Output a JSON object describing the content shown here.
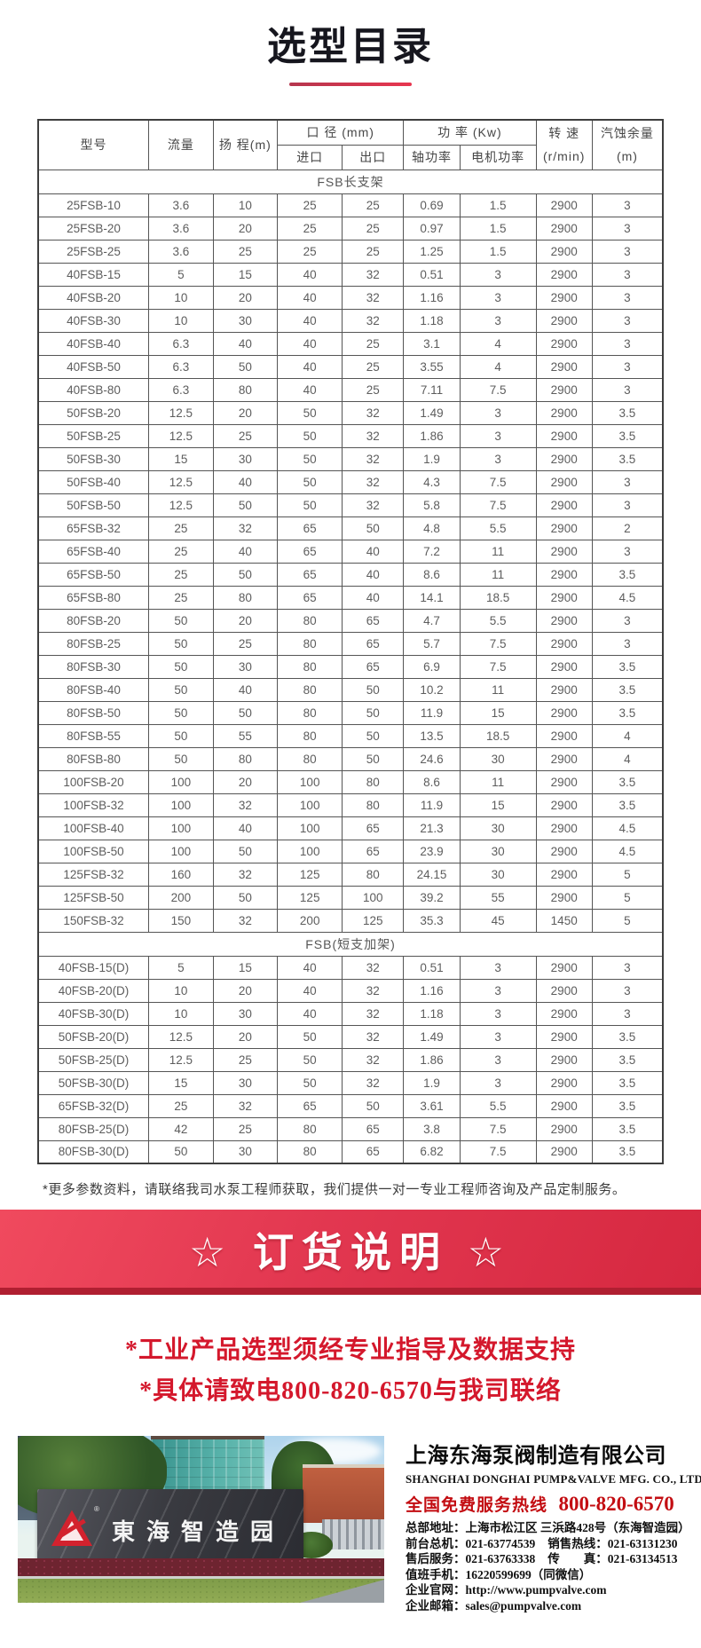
{
  "page_title": "选型目录",
  "colors": {
    "title_underline": "#e8364f",
    "banner_red_light": "#f04a5e",
    "banner_red_dark": "#d62840",
    "banner_bottom_strip": "#b01f31",
    "note_red": "#d4182c",
    "hotline_red": "#c30d12",
    "sign_logo_red": "#d3222e"
  },
  "table": {
    "header": {
      "col_model": "型号",
      "col_flow": "流量",
      "col_head": "扬 程(m)",
      "col_diameter": "口 径 (mm)",
      "col_inlet": "进口",
      "col_outlet": "出口",
      "col_power": "功 率 (Kw)",
      "col_shaft_power": "轴功率",
      "col_motor_power": "电机功率",
      "col_speed": "转 速",
      "col_speed_unit": "(r/min)",
      "col_npsh": "汽蚀余量",
      "col_npsh_unit": "(m)"
    },
    "sections": [
      {
        "title": "FSB长支架",
        "rows": [
          [
            "25FSB-10",
            "3.6",
            "10",
            "25",
            "25",
            "0.69",
            "1.5",
            "2900",
            "3"
          ],
          [
            "25FSB-20",
            "3.6",
            "20",
            "25",
            "25",
            "0.97",
            "1.5",
            "2900",
            "3"
          ],
          [
            "25FSB-25",
            "3.6",
            "25",
            "25",
            "25",
            "1.25",
            "1.5",
            "2900",
            "3"
          ],
          [
            "40FSB-15",
            "5",
            "15",
            "40",
            "32",
            "0.51",
            "3",
            "2900",
            "3"
          ],
          [
            "40FSB-20",
            "10",
            "20",
            "40",
            "32",
            "1.16",
            "3",
            "2900",
            "3"
          ],
          [
            "40FSB-30",
            "10",
            "30",
            "40",
            "32",
            "1.18",
            "3",
            "2900",
            "3"
          ],
          [
            "40FSB-40",
            "6.3",
            "40",
            "40",
            "25",
            "3.1",
            "4",
            "2900",
            "3"
          ],
          [
            "40FSB-50",
            "6.3",
            "50",
            "40",
            "25",
            "3.55",
            "4",
            "2900",
            "3"
          ],
          [
            "40FSB-80",
            "6.3",
            "80",
            "40",
            "25",
            "7.11",
            "7.5",
            "2900",
            "3"
          ],
          [
            "50FSB-20",
            "12.5",
            "20",
            "50",
            "32",
            "1.49",
            "3",
            "2900",
            "3.5"
          ],
          [
            "50FSB-25",
            "12.5",
            "25",
            "50",
            "32",
            "1.86",
            "3",
            "2900",
            "3.5"
          ],
          [
            "50FSB-30",
            "15",
            "30",
            "50",
            "32",
            "1.9",
            "3",
            "2900",
            "3.5"
          ],
          [
            "50FSB-40",
            "12.5",
            "40",
            "50",
            "32",
            "4.3",
            "7.5",
            "2900",
            "3"
          ],
          [
            "50FSB-50",
            "12.5",
            "50",
            "50",
            "32",
            "5.8",
            "7.5",
            "2900",
            "3"
          ],
          [
            "65FSB-32",
            "25",
            "32",
            "65",
            "50",
            "4.8",
            "5.5",
            "2900",
            "2"
          ],
          [
            "65FSB-40",
            "25",
            "40",
            "65",
            "40",
            "7.2",
            "11",
            "2900",
            "3"
          ],
          [
            "65FSB-50",
            "25",
            "50",
            "65",
            "40",
            "8.6",
            "11",
            "2900",
            "3.5"
          ],
          [
            "65FSB-80",
            "25",
            "80",
            "65",
            "40",
            "14.1",
            "18.5",
            "2900",
            "4.5"
          ],
          [
            "80FSB-20",
            "50",
            "20",
            "80",
            "65",
            "4.7",
            "5.5",
            "2900",
            "3"
          ],
          [
            "80FSB-25",
            "50",
            "25",
            "80",
            "65",
            "5.7",
            "7.5",
            "2900",
            "3"
          ],
          [
            "80FSB-30",
            "50",
            "30",
            "80",
            "65",
            "6.9",
            "7.5",
            "2900",
            "3.5"
          ],
          [
            "80FSB-40",
            "50",
            "40",
            "80",
            "50",
            "10.2",
            "11",
            "2900",
            "3.5"
          ],
          [
            "80FSB-50",
            "50",
            "50",
            "80",
            "50",
            "11.9",
            "15",
            "2900",
            "3.5"
          ],
          [
            "80FSB-55",
            "50",
            "55",
            "80",
            "50",
            "13.5",
            "18.5",
            "2900",
            "4"
          ],
          [
            "80FSB-80",
            "50",
            "80",
            "80",
            "50",
            "24.6",
            "30",
            "2900",
            "4"
          ],
          [
            "100FSB-20",
            "100",
            "20",
            "100",
            "80",
            "8.6",
            "11",
            "2900",
            "3.5"
          ],
          [
            "100FSB-32",
            "100",
            "32",
            "100",
            "80",
            "11.9",
            "15",
            "2900",
            "3.5"
          ],
          [
            "100FSB-40",
            "100",
            "40",
            "100",
            "65",
            "21.3",
            "30",
            "2900",
            "4.5"
          ],
          [
            "100FSB-50",
            "100",
            "50",
            "100",
            "65",
            "23.9",
            "30",
            "2900",
            "4.5"
          ],
          [
            "125FSB-32",
            "160",
            "32",
            "125",
            "80",
            "24.15",
            "30",
            "2900",
            "5"
          ],
          [
            "125FSB-50",
            "200",
            "50",
            "125",
            "100",
            "39.2",
            "55",
            "2900",
            "5"
          ],
          [
            "150FSB-32",
            "150",
            "32",
            "200",
            "125",
            "35.3",
            "45",
            "1450",
            "5"
          ]
        ]
      },
      {
        "title": "FSB(短支加架)",
        "rows": [
          [
            "40FSB-15(D)",
            "5",
            "15",
            "40",
            "32",
            "0.51",
            "3",
            "2900",
            "3"
          ],
          [
            "40FSB-20(D)",
            "10",
            "20",
            "40",
            "32",
            "1.16",
            "3",
            "2900",
            "3"
          ],
          [
            "40FSB-30(D)",
            "10",
            "30",
            "40",
            "32",
            "1.18",
            "3",
            "2900",
            "3"
          ],
          [
            "50FSB-20(D)",
            "12.5",
            "20",
            "50",
            "32",
            "1.49",
            "3",
            "2900",
            "3.5"
          ],
          [
            "50FSB-25(D)",
            "12.5",
            "25",
            "50",
            "32",
            "1.86",
            "3",
            "2900",
            "3.5"
          ],
          [
            "50FSB-30(D)",
            "15",
            "30",
            "50",
            "32",
            "1.9",
            "3",
            "2900",
            "3.5"
          ],
          [
            "65FSB-32(D)",
            "25",
            "32",
            "65",
            "50",
            "3.61",
            "5.5",
            "2900",
            "3.5"
          ],
          [
            "80FSB-25(D)",
            "42",
            "25",
            "80",
            "65",
            "3.8",
            "7.5",
            "2900",
            "3.5"
          ],
          [
            "80FSB-30(D)",
            "50",
            "30",
            "80",
            "65",
            "6.82",
            "7.5",
            "2900",
            "3.5"
          ]
        ]
      }
    ]
  },
  "footnote": "*更多参数资料，请联络我司水泵工程师获取，我们提供一对一专业工程师咨询及产品定制服务。",
  "banner": {
    "text": "☆ 订货说明 ☆"
  },
  "notes": [
    "*工业产品选型须经专业指导及数据支持",
    "*具体请致电800-820-6570与我司联络"
  ],
  "photo": {
    "sign_text": "東海智造园",
    "reg_mark": "®"
  },
  "company": {
    "name_cn": "上海东海泵阀制造有限公司",
    "name_en": "SHANGHAI DONGHAI PUMP&VALVE MFG. CO., LTD.",
    "hotline_label": "全国免费服务热线",
    "hotline_number": "800-820-6570",
    "contacts": [
      {
        "pairs": [
          {
            "label": "总部地址：",
            "value": "上海市松江区 三浜路428号（东海智造园）"
          }
        ]
      },
      {
        "pairs": [
          {
            "label": "前台总机：",
            "value": "021-63774539"
          },
          {
            "label": "销售热线：",
            "value": "021-63131230"
          }
        ]
      },
      {
        "pairs": [
          {
            "label": "售后服务：",
            "value": "021-63763338"
          },
          {
            "label": "传　　真：",
            "value": "021-63134513"
          }
        ]
      },
      {
        "pairs": [
          {
            "label": "值班手机：",
            "value": "16220599699（同微信）"
          }
        ]
      },
      {
        "pairs": [
          {
            "label": "企业官网：",
            "value": "http://www.pumpvalve.com"
          }
        ]
      },
      {
        "pairs": [
          {
            "label": "企业邮箱：",
            "value": "sales@pumpvalve.com"
          }
        ]
      }
    ]
  }
}
